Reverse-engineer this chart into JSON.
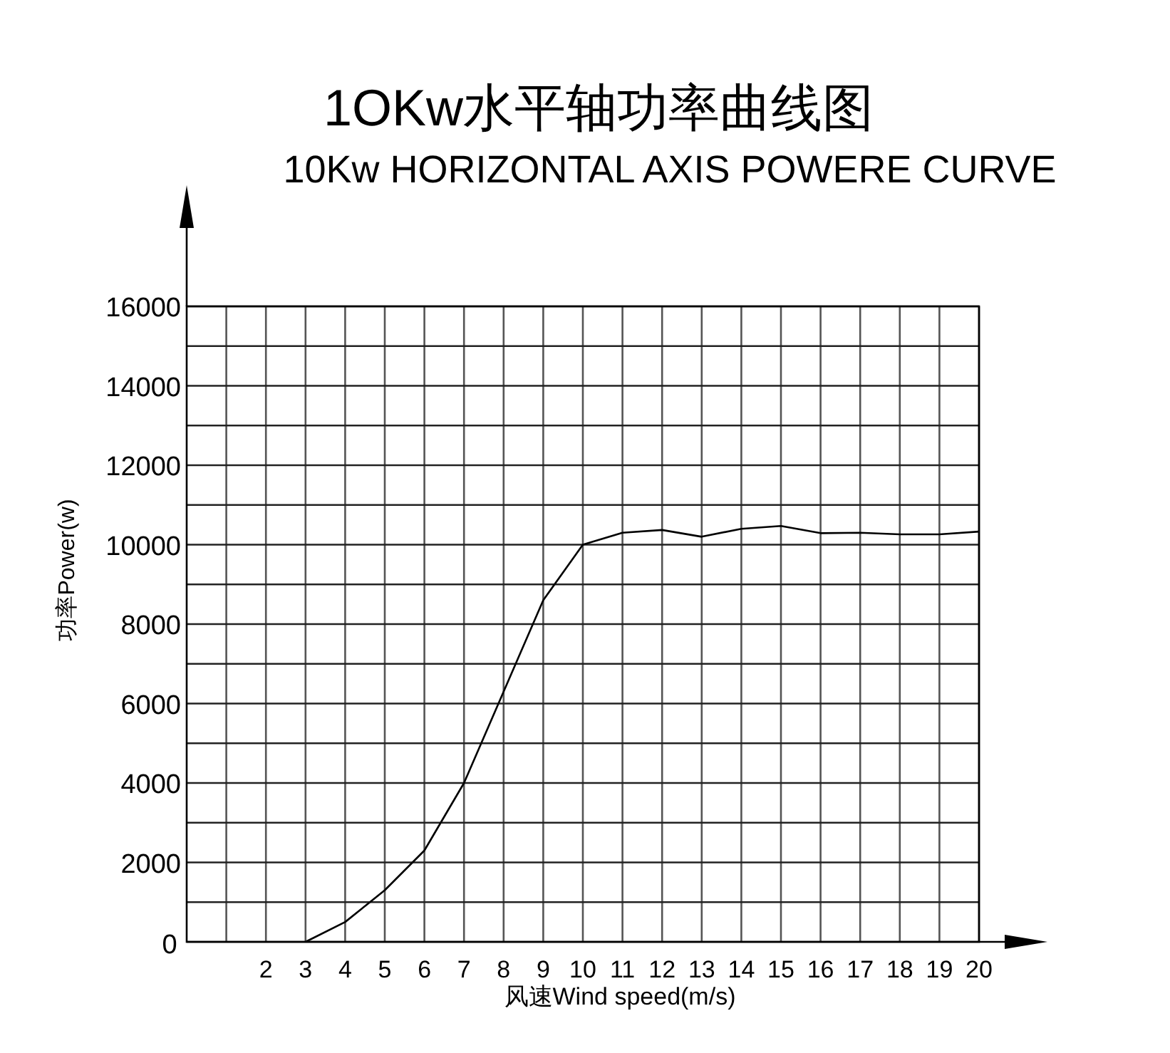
{
  "chart_data": {
    "type": "line",
    "title": "1OKw水平轴功率曲线图",
    "subtitle": "10Kw HORIZONTAL AXIS POWERE CURVE",
    "xlabel": "风速Wind speed(m/s)",
    "ylabel": "功率Power(w)",
    "x": [
      3,
      4,
      5,
      6,
      7,
      8,
      9,
      10,
      11,
      12,
      13,
      14,
      15,
      16,
      17,
      18,
      19,
      20
    ],
    "series": [
      {
        "color": "#000000",
        "values": [
          0,
          500,
          1300,
          2300,
          4000,
          6300,
          8600,
          10000,
          10300,
          10370,
          10200,
          10400,
          10470,
          10290,
          10300,
          10260,
          10260,
          10330
        ]
      }
    ],
    "xlim": [
      0,
      20
    ],
    "ylim": [
      0,
      16000
    ],
    "xticks": [
      {
        "value": 1,
        "label": null
      },
      2,
      3,
      4,
      5,
      6,
      7,
      8,
      9,
      10,
      11,
      12,
      13,
      14,
      15,
      16,
      17,
      18,
      19,
      20
    ],
    "yticks": [
      0,
      {
        "value": 1000,
        "label": null
      },
      2000,
      {
        "value": 3000,
        "label": null
      },
      4000,
      {
        "value": 5000,
        "label": null
      },
      6000,
      {
        "value": 7000,
        "label": null
      },
      8000,
      {
        "value": 9000,
        "label": null
      },
      10000,
      {
        "value": 11000,
        "label": null
      },
      12000,
      {
        "value": 13000,
        "label": null
      },
      14000,
      {
        "value": 15000,
        "label": null
      },
      16000
    ],
    "grid": true,
    "marker": "none",
    "line_style": "solid"
  }
}
